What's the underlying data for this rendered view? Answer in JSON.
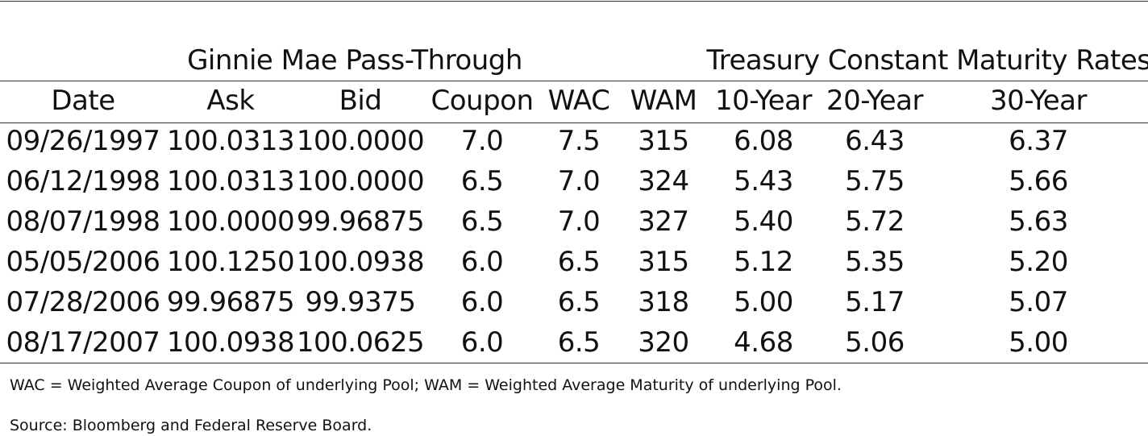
{
  "table": {
    "group_headers": {
      "gnma": "Ginnie Mae Pass-Through",
      "treasury": "Treasury Constant Maturity Rates"
    },
    "columns": [
      "Date",
      "Ask",
      "Bid",
      "Coupon",
      "WAC",
      "WAM",
      "10-Year",
      "20-Year",
      "30-Year"
    ],
    "rows": [
      [
        "09/26/1997",
        "100.0313",
        "100.0000",
        "7.0",
        "7.5",
        "315",
        "6.08",
        "6.43",
        "6.37"
      ],
      [
        "06/12/1998",
        "100.0313",
        "100.0000",
        "6.5",
        "7.0",
        "324",
        "5.43",
        "5.75",
        "5.66"
      ],
      [
        "08/07/1998",
        "100.0000",
        "99.96875",
        "6.5",
        "7.0",
        "327",
        "5.40",
        "5.72",
        "5.63"
      ],
      [
        "05/05/2006",
        "100.1250",
        "100.0938",
        "6.0",
        "6.5",
        "315",
        "5.12",
        "5.35",
        "5.20"
      ],
      [
        "07/28/2006",
        "99.96875",
        "99.9375",
        "6.0",
        "6.5",
        "318",
        "5.00",
        "5.17",
        "5.07"
      ],
      [
        "08/17/2007",
        "100.0938",
        "100.0625",
        "6.0",
        "6.5",
        "320",
        "4.68",
        "5.06",
        "5.00"
      ]
    ]
  },
  "notes": {
    "definitions": "WAC = Weighted Average Coupon of underlying Pool; WAM = Weighted Average Maturity of underlying Pool.",
    "source": "Source: Bloomberg and Federal Reserve Board."
  }
}
